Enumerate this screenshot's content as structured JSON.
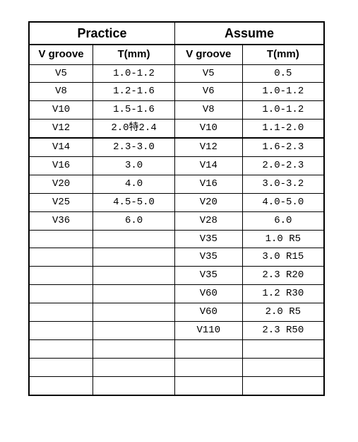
{
  "columns": {
    "group_practice": "Practice",
    "group_assume": "Assume",
    "practice_vgroove": "V groove",
    "practice_t": "T(mm)",
    "assume_vgroove": "V groove",
    "assume_t": "T(mm)"
  },
  "rows": [
    {
      "p_v": "V5",
      "p_t": "1.0-1.2",
      "a_v": "V5",
      "a_t": "0.5",
      "heavy": false
    },
    {
      "p_v": "V8",
      "p_t": "1.2-1.6",
      "a_v": "V6",
      "a_t": "1.0-1.2",
      "heavy": false
    },
    {
      "p_v": "V10",
      "p_t": "1.5-1.6",
      "a_v": "V8",
      "a_t": "1.0-1.2",
      "heavy": false
    },
    {
      "p_v": "V12",
      "p_t": "2.0特2.4",
      "a_v": "V10",
      "a_t": "1.1-2.0",
      "heavy": false
    },
    {
      "p_v": "V14",
      "p_t": "2.3-3.0",
      "a_v": "V12",
      "a_t": "1.6-2.3",
      "heavy": true
    },
    {
      "p_v": "V16",
      "p_t": "3.0",
      "a_v": "V14",
      "a_t": "2.0-2.3",
      "heavy": false
    },
    {
      "p_v": "V20",
      "p_t": "4.0",
      "a_v": "V16",
      "a_t": "3.0-3.2",
      "heavy": false
    },
    {
      "p_v": "V25",
      "p_t": "4.5-5.0",
      "a_v": "V20",
      "a_t": "4.0-5.0",
      "heavy": false
    },
    {
      "p_v": "V36",
      "p_t": "6.0",
      "a_v": "V28",
      "a_t": "6.0",
      "heavy": false
    },
    {
      "p_v": "",
      "p_t": "",
      "a_v": "V35",
      "a_t": "1.0 R5",
      "heavy": false
    },
    {
      "p_v": "",
      "p_t": "",
      "a_v": "V35",
      "a_t": "3.0 R15",
      "heavy": false
    },
    {
      "p_v": "",
      "p_t": "",
      "a_v": "V35",
      "a_t": "2.3 R20",
      "heavy": false
    },
    {
      "p_v": "",
      "p_t": "",
      "a_v": "V60",
      "a_t": "1.2 R30",
      "heavy": false
    },
    {
      "p_v": "",
      "p_t": "",
      "a_v": "V60",
      "a_t": "2.0 R5",
      "heavy": false
    },
    {
      "p_v": "",
      "p_t": "",
      "a_v": "V110",
      "a_t": "2.3 R50",
      "heavy": false
    },
    {
      "p_v": "",
      "p_t": "",
      "a_v": "",
      "a_t": "",
      "heavy": false
    },
    {
      "p_v": "",
      "p_t": "",
      "a_v": "",
      "a_t": "",
      "heavy": false
    },
    {
      "p_v": "",
      "p_t": "",
      "a_v": "",
      "a_t": "",
      "heavy": false
    }
  ],
  "styles": {
    "border_color": "#000000",
    "background": "#ffffff",
    "header_fontsize": 18,
    "subhead_fontsize": 15,
    "cell_fontsize": 14
  }
}
